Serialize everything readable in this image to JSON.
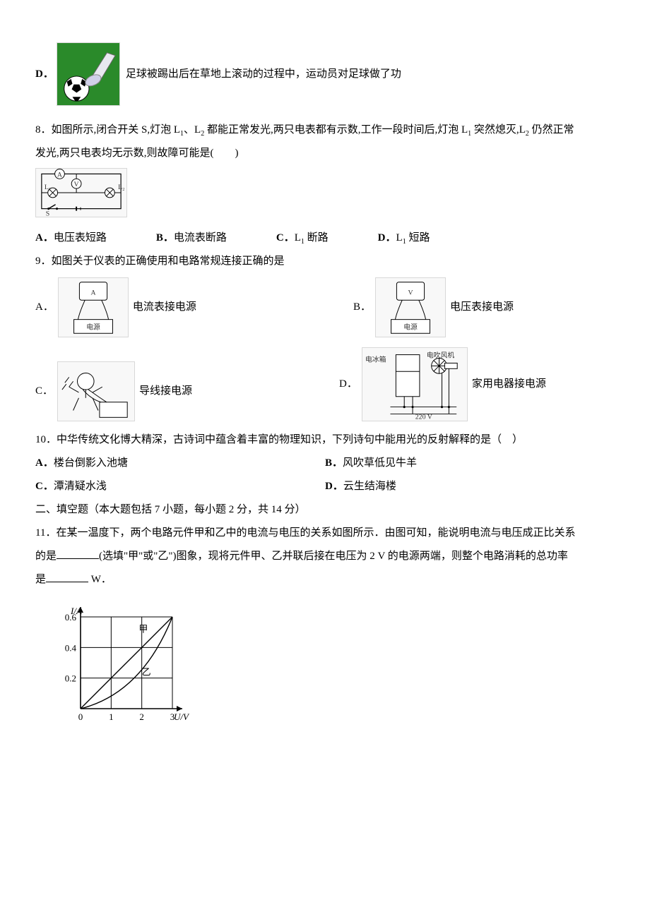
{
  "qD": {
    "label": "D．",
    "image_alt": "soccer-kick",
    "text": "足球被踢出后在草地上滚动的过程中，运动员对足球做了功"
  },
  "q8": {
    "stem_a": "8．如图所示,闭合开关 S,灯泡 L",
    "sub1": "1",
    "stem_b": "、L",
    "sub2": "2",
    "stem_c": " 都能正常发光,两只电表都有示数,工作一段时间后,灯泡 L",
    "sub3": "1",
    "stem_d": " 突然熄灭,L",
    "sub4": "2",
    "stem_e": " 仍然正常",
    "stem_line2": "发光,两只电表均无示数,则故障可能是(　　)",
    "circuit_alt": "circuit-diagram",
    "opts": {
      "A_label": "A．",
      "A": "电压表短路",
      "B_label": "B．",
      "B": "电流表断路",
      "C_label": "C．",
      "C_pre": "L",
      "C_sub": "1",
      "C_post": " 断路",
      "D_label": "D．",
      "D_pre": "L",
      "D_sub": "1",
      "D_post": " 短路"
    }
  },
  "q9": {
    "stem": "9．如图关于仪表的正确使用和电路常规连接正确的是",
    "A_label": "A．",
    "A_img_alt": "ammeter-to-source",
    "A_text": "电流表接电源",
    "B_label": "B．",
    "B_img_alt": "voltmeter-to-source",
    "B_text": "电压表接电源",
    "C_label": "C．",
    "C_img_alt": "wire-to-source",
    "C_text": "导线接电源",
    "D_label": "D．",
    "D_img_alt": "appliances-to-source",
    "D_text": "家用电器接电源",
    "D_top_left": "电冰箱",
    "D_top_right": "电吹风机",
    "D_bottom": "220 V"
  },
  "q10": {
    "stem": "10．中华传统文化博大精深，古诗词中蕴含着丰富的物理知识，下列诗句中能用光的反射解释的是（　）",
    "A_label": "A．",
    "A": "楼台倒影入池塘",
    "B_label": "B．",
    "B": "风吹草低见牛羊",
    "C_label": "C．",
    "C": "潭清疑水浅",
    "D_label": "D．",
    "D": "云生结海楼"
  },
  "section2": "二、填空题（本大题包括 7 小题，每小题 2 分，共 14 分）",
  "q11": {
    "line1_a": "11．在某一温度下，两个电路元件甲和乙中的电流与电压的关系如图所示．由图可知，能说明电流与电压成正比关系",
    "line2_a": "的是",
    "line2_b": "(选填\"甲\"或\"乙\")图象，现将元件甲、乙并联后接在电压为 2 V 的电源两端，则整个电路消耗的总功率",
    "line3_a": "是",
    "line3_b": " W．"
  },
  "chart": {
    "type": "line",
    "y_label": "I/A",
    "x_label": "U/V",
    "x_ticks": [
      "0",
      "1",
      "2",
      "3"
    ],
    "y_ticks": [
      "0.2",
      "0.4",
      "0.6"
    ],
    "xlim": [
      0,
      3
    ],
    "ylim": [
      0,
      0.6
    ],
    "series": {
      "jia": {
        "label": "甲",
        "points": [
          [
            0,
            0
          ],
          [
            1,
            0.2
          ],
          [
            2,
            0.4
          ],
          [
            3,
            0.6
          ]
        ]
      },
      "yi": {
        "label": "乙",
        "points": [
          [
            0,
            0
          ],
          [
            1,
            0.1
          ],
          [
            2,
            0.3
          ],
          [
            3,
            0.6
          ]
        ]
      }
    },
    "axis_color": "#000000",
    "grid_color": "#000000",
    "line_color": "#000000",
    "line_width": 1.4,
    "font_size": 13
  }
}
